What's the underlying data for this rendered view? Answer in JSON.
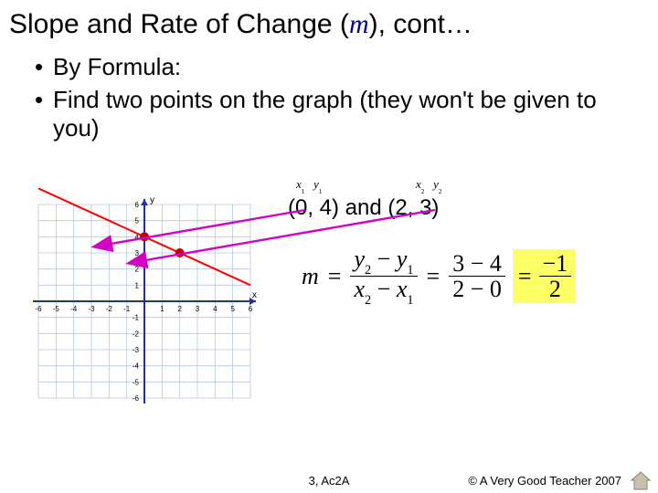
{
  "title": {
    "pre": "Slope and Rate of Change (",
    "var": "m",
    "post": "), cont…"
  },
  "bullets": [
    "By Formula:",
    "Find two points on the graph (they won't be given to you)"
  ],
  "points": {
    "p1": "(0, 4)",
    "conj": " and ",
    "p2": "(2, 3)"
  },
  "xylabels": {
    "x1": "x",
    "s1": "1",
    "y1": "y",
    "s1b": "1",
    "x2": "x",
    "s2": "2",
    "y2": "y",
    "s2b": "2"
  },
  "formula": {
    "m": "m",
    "eq": "=",
    "num1a": "y",
    "num1as": "2",
    "minus": " − ",
    "num1b": "y",
    "num1bs": "1",
    "den1a": "x",
    "den1as": "2",
    "den1b": "x",
    "den1bs": "1",
    "num2": "3 − 4",
    "den2": "2 − 0",
    "num3": "−1",
    "den3": "2"
  },
  "graph": {
    "xmin": -6,
    "xmax": 6,
    "ymin": -6,
    "ymax": 6,
    "grid_color": "#b8c6e0",
    "axis_color": "#2030a0",
    "line_color": "#ff0000",
    "line_start": [
      -6,
      7
    ],
    "line_end": [
      6,
      1
    ],
    "points": [
      [
        0,
        4
      ],
      [
        2,
        3
      ]
    ],
    "point_color": "#c00000",
    "bg": "#ffffff",
    "axis_label_color": "#000"
  },
  "arrows": {
    "a1": {
      "from": [
        334,
        230
      ],
      "to": [
        104,
        270
      ]
    },
    "a2": {
      "from": [
        476,
        230
      ],
      "to": [
        142,
        288
      ]
    }
  },
  "footer": {
    "center": "3, Ac2A",
    "right": "© A Very Good Teacher 2007"
  },
  "colors": {
    "highlight": "#ffff66",
    "magenta": "#d400c8",
    "title_var": "#000099"
  }
}
